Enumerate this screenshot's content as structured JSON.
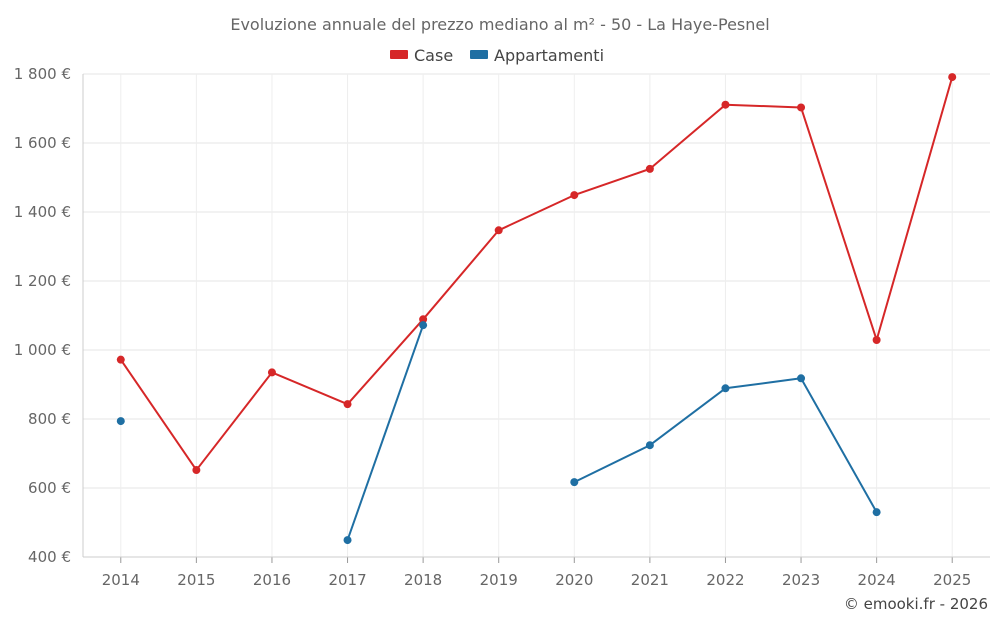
{
  "chart_data": {
    "type": "line",
    "title": "Evoluzione annuale del prezzo mediano al m² - 50 - La Haye-Pesnel",
    "categories": [
      "2014",
      "2015",
      "2016",
      "2017",
      "2018",
      "2019",
      "2020",
      "2021",
      "2022",
      "2023",
      "2024",
      "2025"
    ],
    "series": [
      {
        "name": "Case",
        "color": "#d62728",
        "values": [
          972,
          652,
          935,
          843,
          1089,
          1347,
          1449,
          1525,
          1711,
          1703,
          1029,
          1791
        ]
      },
      {
        "name": "Appartamenti",
        "color": "#1f6fa3",
        "values": [
          794,
          null,
          null,
          449,
          1072,
          null,
          617,
          724,
          889,
          918,
          530,
          null
        ]
      }
    ],
    "y_ticks": [
      {
        "value": 400,
        "label": "400 €"
      },
      {
        "value": 600,
        "label": "600 €"
      },
      {
        "value": 800,
        "label": "800 €"
      },
      {
        "value": 1000,
        "label": "1 000 €"
      },
      {
        "value": 1200,
        "label": "1 200 €"
      },
      {
        "value": 1400,
        "label": "1 400 €"
      },
      {
        "value": 1600,
        "label": "1 600 €"
      },
      {
        "value": 1800,
        "label": "1 800 €"
      }
    ],
    "ylim": [
      400,
      1800
    ],
    "grid": true,
    "legend": "top-center",
    "xlabel": "",
    "ylabel": ""
  },
  "credit": "© emooki.fr - 2026"
}
